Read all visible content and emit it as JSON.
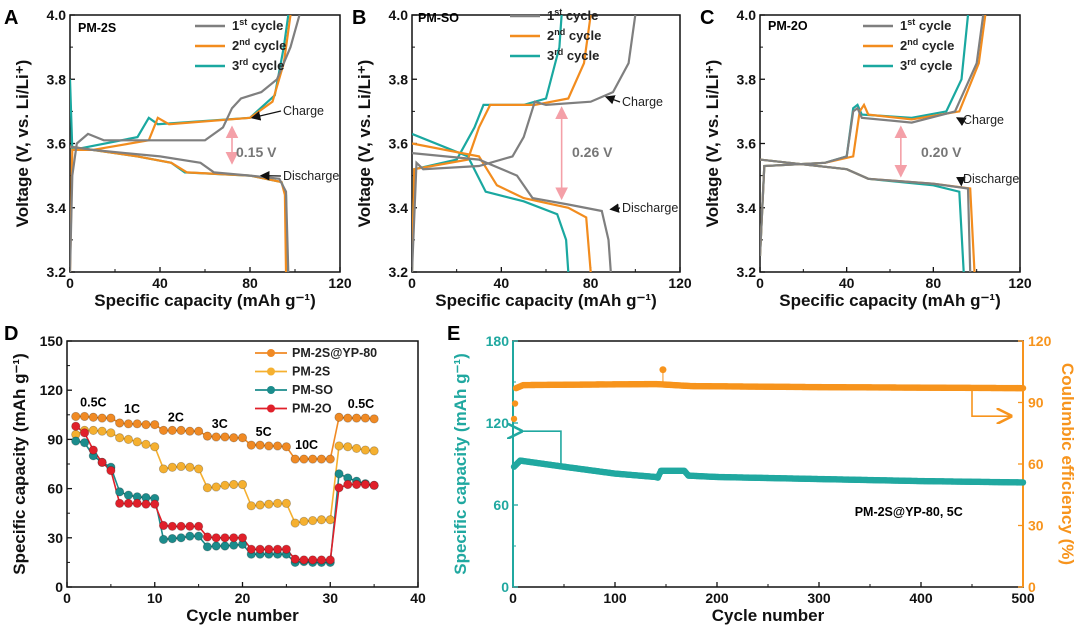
{
  "chart_data": [
    {
      "panel": "A",
      "type": "line",
      "title": "PM-2S",
      "xlabel": "Specific capacity (mAh g⁻¹)",
      "ylabel": "Voltage (V, vs. Li/Li⁺)",
      "xlim": [
        0,
        120
      ],
      "ylim": [
        3.2,
        4.0
      ],
      "xticks": [
        "0",
        "40",
        "80",
        "120"
      ],
      "yticks": [
        "3.2",
        "3.4",
        "3.6",
        "3.8",
        "4.0"
      ],
      "legend": "top-left",
      "series": [
        {
          "num": "1",
          "sup": "st",
          "suffix": " cycle",
          "color": "#7f7f7f",
          "charge": [
            [
              0,
              3.2
            ],
            [
              1,
              3.5
            ],
            [
              3,
              3.6
            ],
            [
              8,
              3.63
            ],
            [
              15,
              3.61
            ],
            [
              60,
              3.61
            ],
            [
              68,
              3.65
            ],
            [
              72,
              3.71
            ],
            [
              76,
              3.74
            ],
            [
              85,
              3.76
            ],
            [
              92,
              3.8
            ],
            [
              98,
              3.9
            ],
            [
              102,
              4.0
            ]
          ],
          "discharge": [
            [
              0,
              3.59
            ],
            [
              10,
              3.58
            ],
            [
              40,
              3.56
            ],
            [
              58,
              3.54
            ],
            [
              64,
              3.51
            ],
            [
              80,
              3.5
            ],
            [
              93,
              3.49
            ],
            [
              96,
              3.45
            ],
            [
              97,
              3.2
            ]
          ]
        },
        {
          "num": "2",
          "sup": "nd",
          "suffix": " cycle",
          "color": "#f28c1e",
          "charge": [
            [
              0,
              3.2
            ],
            [
              1,
              3.58
            ],
            [
              10,
              3.58
            ],
            [
              35,
              3.61
            ],
            [
              39,
              3.68
            ],
            [
              44,
              3.66
            ],
            [
              80,
              3.68
            ],
            [
              90,
              3.73
            ],
            [
              95,
              3.85
            ],
            [
              98,
              4.0
            ]
          ],
          "discharge": [
            [
              0,
              3.59
            ],
            [
              30,
              3.56
            ],
            [
              45,
              3.54
            ],
            [
              52,
              3.51
            ],
            [
              80,
              3.5
            ],
            [
              94,
              3.48
            ],
            [
              95.5,
              3.44
            ],
            [
              96,
              3.2
            ]
          ]
        },
        {
          "num": "3",
          "sup": "rd",
          "suffix": "  cycle",
          "color": "#1aa8a0",
          "charge": [
            [
              0,
              3.8
            ],
            [
              1,
              3.58
            ],
            [
              30,
              3.62
            ],
            [
              35,
              3.68
            ],
            [
              39,
              3.66
            ],
            [
              80,
              3.68
            ],
            [
              91,
              3.75
            ],
            [
              95,
              3.9
            ],
            [
              97,
              4.0
            ]
          ],
          "discharge": [
            [
              0,
              3.59
            ],
            [
              30,
              3.56
            ],
            [
              45,
              3.54
            ],
            [
              51,
              3.51
            ],
            [
              80,
              3.5
            ],
            [
              94,
              3.48
            ],
            [
              96,
              3.44
            ],
            [
              96.5,
              3.2
            ]
          ]
        }
      ],
      "annotations": {
        "charge": "Charge",
        "discharge": "Discharge",
        "gap": "0.15 V"
      }
    },
    {
      "panel": "B",
      "type": "line",
      "title": "PM-SO",
      "xlabel": "Specific capacity (mAh g⁻¹)",
      "ylabel": "Voltage (V, vs. Li/Li⁺)",
      "xlim": [
        0,
        120
      ],
      "ylim": [
        3.2,
        4.0
      ],
      "xticks": [
        "0",
        "40",
        "80",
        "120"
      ],
      "yticks": [
        "3.2",
        "3.4",
        "3.6",
        "3.8",
        "4.0"
      ],
      "legend": "top-left",
      "series": [
        {
          "num": "1",
          "sup": "st",
          "suffix": " cycle",
          "color": "#7f7f7f",
          "charge": [
            [
              0,
              3.2
            ],
            [
              2,
              3.54
            ],
            [
              5,
              3.52
            ],
            [
              30,
              3.53
            ],
            [
              45,
              3.56
            ],
            [
              50,
              3.62
            ],
            [
              55,
              3.73
            ],
            [
              60,
              3.72
            ],
            [
              80,
              3.73
            ],
            [
              90,
              3.76
            ],
            [
              97,
              3.85
            ],
            [
              100,
              4.0
            ]
          ],
          "discharge": [
            [
              0,
              3.57
            ],
            [
              30,
              3.55
            ],
            [
              47,
              3.5
            ],
            [
              54,
              3.43
            ],
            [
              70,
              3.41
            ],
            [
              85,
              3.39
            ],
            [
              88,
              3.3
            ],
            [
              89,
              3.2
            ]
          ]
        },
        {
          "num": "2",
          "sup": "nd",
          "suffix": " cycle",
          "color": "#f28c1e",
          "charge": [
            [
              0,
              3.2
            ],
            [
              1,
              3.52
            ],
            [
              25,
              3.55
            ],
            [
              30,
              3.65
            ],
            [
              35,
              3.72
            ],
            [
              55,
              3.72
            ],
            [
              70,
              3.74
            ],
            [
              77,
              3.85
            ],
            [
              80,
              4.0
            ]
          ],
          "discharge": [
            [
              0,
              3.6
            ],
            [
              30,
              3.56
            ],
            [
              38,
              3.47
            ],
            [
              50,
              3.43
            ],
            [
              70,
              3.4
            ],
            [
              78,
              3.37
            ],
            [
              80,
              3.2
            ]
          ]
        },
        {
          "num": "3",
          "sup": "rd",
          "suffix": "  cycle",
          "color": "#1aa8a0",
          "charge": [
            [
              0,
              3.2
            ],
            [
              1,
              3.52
            ],
            [
              20,
              3.55
            ],
            [
              28,
              3.65
            ],
            [
              32,
              3.72
            ],
            [
              50,
              3.72
            ],
            [
              60,
              3.74
            ],
            [
              66,
              3.9
            ],
            [
              67,
              4.0
            ]
          ],
          "discharge": [
            [
              0,
              3.63
            ],
            [
              25,
              3.56
            ],
            [
              33,
              3.45
            ],
            [
              50,
              3.42
            ],
            [
              65,
              3.38
            ],
            [
              69,
              3.3
            ],
            [
              70,
              3.2
            ]
          ]
        }
      ],
      "annotations": {
        "charge": "Charge",
        "discharge": "Discharge",
        "gap": "0.26 V"
      }
    },
    {
      "panel": "C",
      "type": "line",
      "title": "PM-2O",
      "xlabel": "Specific capacity (mAh g⁻¹)",
      "ylabel": "Voltage (V, vs. Li/Li⁺)",
      "xlim": [
        0,
        120
      ],
      "ylim": [
        3.2,
        4.0
      ],
      "xticks": [
        "0",
        "40",
        "80",
        "120"
      ],
      "yticks": [
        "3.2",
        "3.4",
        "3.6",
        "3.8",
        "4.0"
      ],
      "legend": "top-left",
      "series": [
        {
          "num": "1",
          "sup": "st",
          "suffix": " cycle",
          "color": "#7f7f7f",
          "charge": [
            [
              0,
              3.25
            ],
            [
              2,
              3.53
            ],
            [
              30,
              3.54
            ],
            [
              40,
              3.56
            ],
            [
              43,
              3.7
            ],
            [
              45,
              3.71
            ],
            [
              47,
              3.68
            ],
            [
              70,
              3.665
            ],
            [
              90,
              3.7
            ],
            [
              100,
              3.85
            ],
            [
              103,
              4.0
            ]
          ],
          "discharge": [
            [
              0,
              3.55
            ],
            [
              40,
              3.52
            ],
            [
              50,
              3.49
            ],
            [
              80,
              3.475
            ],
            [
              96,
              3.46
            ],
            [
              97,
              3.2
            ]
          ]
        },
        {
          "num": "2",
          "sup": "nd",
          "suffix": " cycle",
          "color": "#f28c1e",
          "charge": [
            [
              0,
              3.25
            ],
            [
              2,
              3.53
            ],
            [
              30,
              3.54
            ],
            [
              43,
              3.56
            ],
            [
              46,
              3.7
            ],
            [
              48,
              3.72
            ],
            [
              50,
              3.69
            ],
            [
              70,
              3.675
            ],
            [
              92,
              3.7
            ],
            [
              101,
              3.85
            ],
            [
              104,
              4.0
            ]
          ],
          "discharge": [
            [
              0,
              3.55
            ],
            [
              40,
              3.52
            ],
            [
              50,
              3.49
            ],
            [
              80,
              3.475
            ],
            [
              97,
              3.46
            ],
            [
              99,
              3.2
            ]
          ]
        },
        {
          "num": "3",
          "sup": "rd",
          "suffix": "  cycle",
          "color": "#1aa8a0",
          "charge": [
            [
              0,
              3.25
            ],
            [
              2,
              3.53
            ],
            [
              30,
              3.54
            ],
            [
              40,
              3.56
            ],
            [
              43,
              3.71
            ],
            [
              45,
              3.72
            ],
            [
              47,
              3.69
            ],
            [
              70,
              3.68
            ],
            [
              86,
              3.7
            ],
            [
              93,
              3.8
            ],
            [
              96,
              4.0
            ]
          ],
          "discharge": [
            [
              0,
              3.55
            ],
            [
              40,
              3.52
            ],
            [
              50,
              3.49
            ],
            [
              80,
              3.47
            ],
            [
              92,
              3.45
            ],
            [
              94,
              3.2
            ]
          ]
        }
      ],
      "annotations": {
        "charge": "Charge",
        "discharge": "Discharge",
        "gap": "0.20 V"
      }
    },
    {
      "panel": "D",
      "type": "line",
      "xlabel": "Cycle number",
      "ylabel": "Specific capacity (mAh g⁻¹)",
      "xlim": [
        0,
        40
      ],
      "ylim": [
        0,
        150
      ],
      "xticks": [
        "0",
        "10",
        "20",
        "30",
        "40"
      ],
      "yticks": [
        "0",
        "30",
        "60",
        "90",
        "120",
        "150"
      ],
      "legend": "top-right",
      "rates": [
        "0.5C",
        "1C",
        "2C",
        "3C",
        "5C",
        "10C",
        "0.5C"
      ],
      "series": [
        {
          "name": "PM-2S@YP-80",
          "color": "#f08a24",
          "values": [
            104,
            104,
            103.5,
            103,
            103,
            100,
            99.5,
            99.5,
            99,
            99,
            95.5,
            95.5,
            95.5,
            95,
            95,
            92,
            91.5,
            91.5,
            91,
            91,
            86.5,
            86.5,
            86,
            86,
            85.5,
            78,
            78,
            78,
            78,
            78,
            103.5,
            103,
            103,
            103,
            102.5
          ]
        },
        {
          "name": "PM-2S",
          "color": "#f5b030",
          "values": [
            93,
            95.5,
            95.5,
            95,
            94,
            91,
            90,
            88.5,
            87,
            85.5,
            72,
            73,
            73.5,
            73,
            72,
            60.5,
            61,
            62,
            62.5,
            62.5,
            49.5,
            50,
            50.5,
            51,
            51,
            39,
            40,
            40.5,
            41,
            41,
            86,
            85.5,
            84.5,
            83.5,
            83
          ]
        },
        {
          "name": "PM-SO",
          "color": "#1b8c8c",
          "values": [
            89,
            88,
            80,
            76,
            73,
            58,
            56,
            55,
            54.5,
            54,
            29,
            29.5,
            30,
            31,
            31,
            24.5,
            25,
            25,
            25.5,
            26,
            20,
            20,
            20,
            20,
            20,
            15,
            15.5,
            15,
            15,
            15,
            69,
            66.5,
            64.5,
            63,
            62
          ]
        },
        {
          "name": "PM-2O",
          "color": "#e0202a",
          "values": [
            98,
            94,
            83.5,
            76,
            71,
            51,
            51,
            51,
            50.5,
            50.5,
            37.5,
            37,
            37,
            37,
            37,
            30.5,
            30,
            30,
            30,
            30,
            23,
            23,
            23,
            23,
            23,
            17,
            16.5,
            16.5,
            16.5,
            16.5,
            60.5,
            62.5,
            62.5,
            62.5,
            62
          ]
        }
      ]
    },
    {
      "panel": "E",
      "type": "scatter",
      "xlabel": "Cycle number",
      "ylabel": "Specific capacity (mAh g⁻¹)",
      "ylabel_right": "Coulumbic efficiency (%)",
      "xlim": [
        0,
        500
      ],
      "ylim": [
        0,
        180
      ],
      "ylim_right": [
        0,
        120
      ],
      "xticks": [
        "0",
        "100",
        "200",
        "300",
        "400",
        "500"
      ],
      "yticks": [
        "0",
        "60",
        "120",
        "180"
      ],
      "yticks_right": [
        "0",
        "30",
        "60",
        "90",
        "120"
      ],
      "annotation": "PM-2S@YP-80, 5C",
      "series": [
        {
          "name": "Specific capacity",
          "axis": "left",
          "color": "#20a8a0",
          "points": [
            [
              1,
              88
            ],
            [
              7,
              92.5
            ],
            [
              50,
              88
            ],
            [
              100,
              83
            ],
            [
              140,
              80.5
            ],
            [
              142,
              80
            ],
            [
              145,
              85
            ],
            [
              168,
              85
            ],
            [
              172,
              81.5
            ],
            [
              200,
              80.5
            ],
            [
              300,
              79
            ],
            [
              400,
              77.5
            ],
            [
              500,
              76.5
            ]
          ]
        },
        {
          "name": "Coulumbic efficiency",
          "axis": "right",
          "color": "#f7941d",
          "points": [
            [
              1,
              82
            ],
            [
              3,
              97
            ],
            [
              10,
              98.5
            ],
            [
              140,
              99
            ],
            [
              175,
              98
            ],
            [
              300,
              97.5
            ],
            [
              500,
              97
            ]
          ],
          "outliers": [
            [
              147,
              106
            ]
          ]
        }
      ]
    }
  ]
}
